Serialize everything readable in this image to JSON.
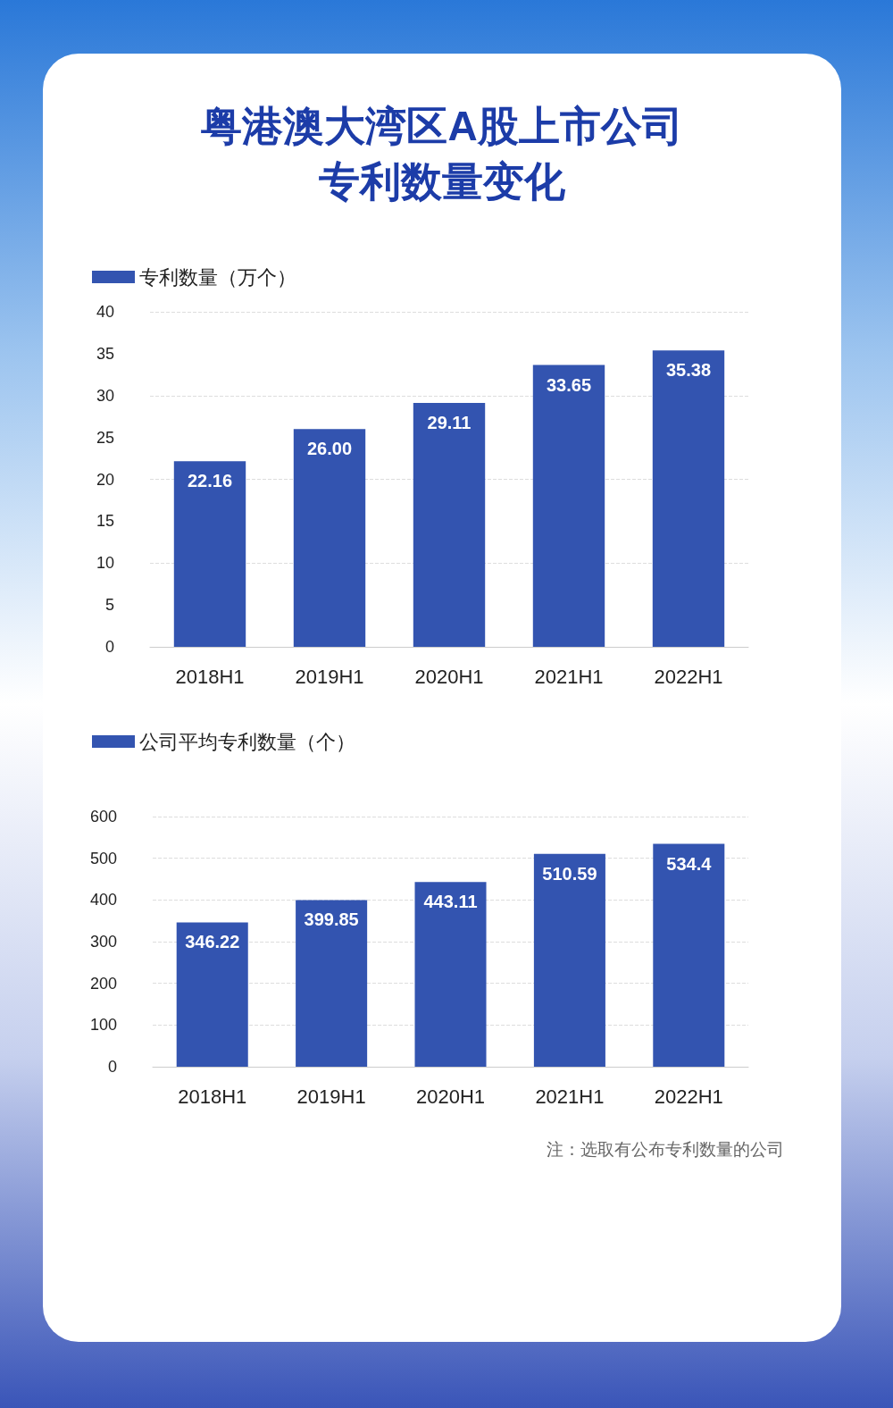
{
  "chart_data": [
    {
      "type": "bar",
      "title": "粤港澳大湾区A股上市公司专利数量变化",
      "categories": [
        "2018H1",
        "2019H1",
        "2020H1",
        "2021H1",
        "2022H1"
      ],
      "series": [
        {
          "name": "专利数量（万个）",
          "color": "#3354b0",
          "values": [
            22.16,
            26.0,
            29.11,
            33.65,
            35.38
          ],
          "value_labels": [
            "22.16",
            "26.00",
            "29.11",
            "33.65",
            "35.38"
          ]
        }
      ],
      "ylim": [
        0,
        40
      ],
      "yticks": [
        0,
        5,
        10,
        15,
        20,
        25,
        30,
        35,
        40
      ],
      "grid": "y",
      "legend": "top left"
    },
    {
      "type": "bar",
      "categories": [
        "2018H1",
        "2019H1",
        "2020H1",
        "2021H1",
        "2022H1"
      ],
      "series": [
        {
          "name": "公司平均专利数量（个）",
          "color": "#3354b0",
          "values": [
            346.22,
            399.85,
            443.11,
            510.59,
            534.4
          ]
        }
      ],
      "ylim": [
        0,
        600
      ],
      "yticks": [
        0,
        100,
        200,
        300,
        400,
        500,
        600
      ],
      "grid": "y",
      "legend": "top left",
      "data_labels": true,
      "annotations": [
        "注：选取有公布专利数量的公司"
      ]
    }
  ]
}
